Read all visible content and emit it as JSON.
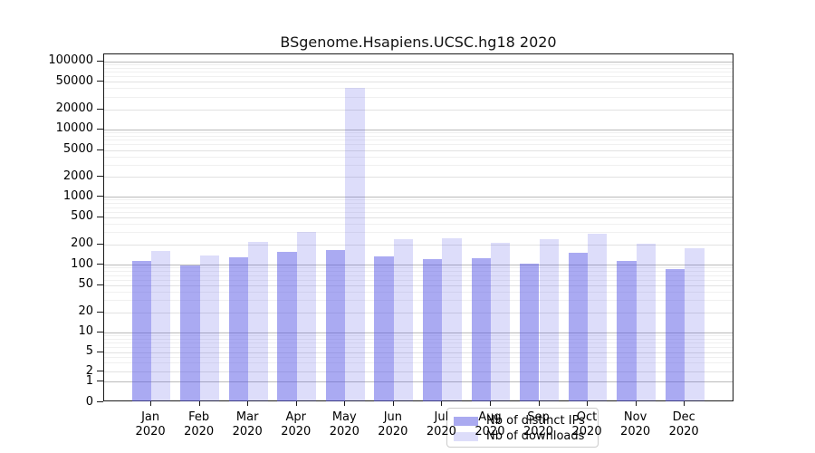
{
  "chart_data": {
    "type": "bar",
    "title": "BSgenome.Hsapiens.UCSC.hg18 2020",
    "categories": [
      "Jan 2020",
      "Feb 2020",
      "Mar 2020",
      "Apr 2020",
      "May 2020",
      "Jun 2020",
      "Jul 2020",
      "Aug 2020",
      "Sep 2020",
      "Oct 2020",
      "Nov 2020",
      "Dec 2020"
    ],
    "series": [
      {
        "name": "Nb of distinct IPs",
        "color": "#aaaaf0",
        "values": [
          112,
          96,
          126,
          155,
          162,
          133,
          120,
          123,
          104,
          148,
          112,
          87
        ]
      },
      {
        "name": "Nb of downloads",
        "color": "#ddddfa",
        "values": [
          160,
          135,
          215,
          300,
          40000,
          236,
          241,
          207,
          236,
          288,
          201,
          174
        ]
      }
    ],
    "y_ticks": [
      0,
      1,
      2,
      5,
      10,
      20,
      50,
      100,
      200,
      500,
      1000,
      2000,
      5000,
      10000,
      20000,
      50000,
      100000
    ],
    "xlabel": "",
    "ylabel": "",
    "yscale": "log-like",
    "ylim": [
      0,
      100000
    ],
    "grid": true,
    "legend_position": "lower center"
  }
}
